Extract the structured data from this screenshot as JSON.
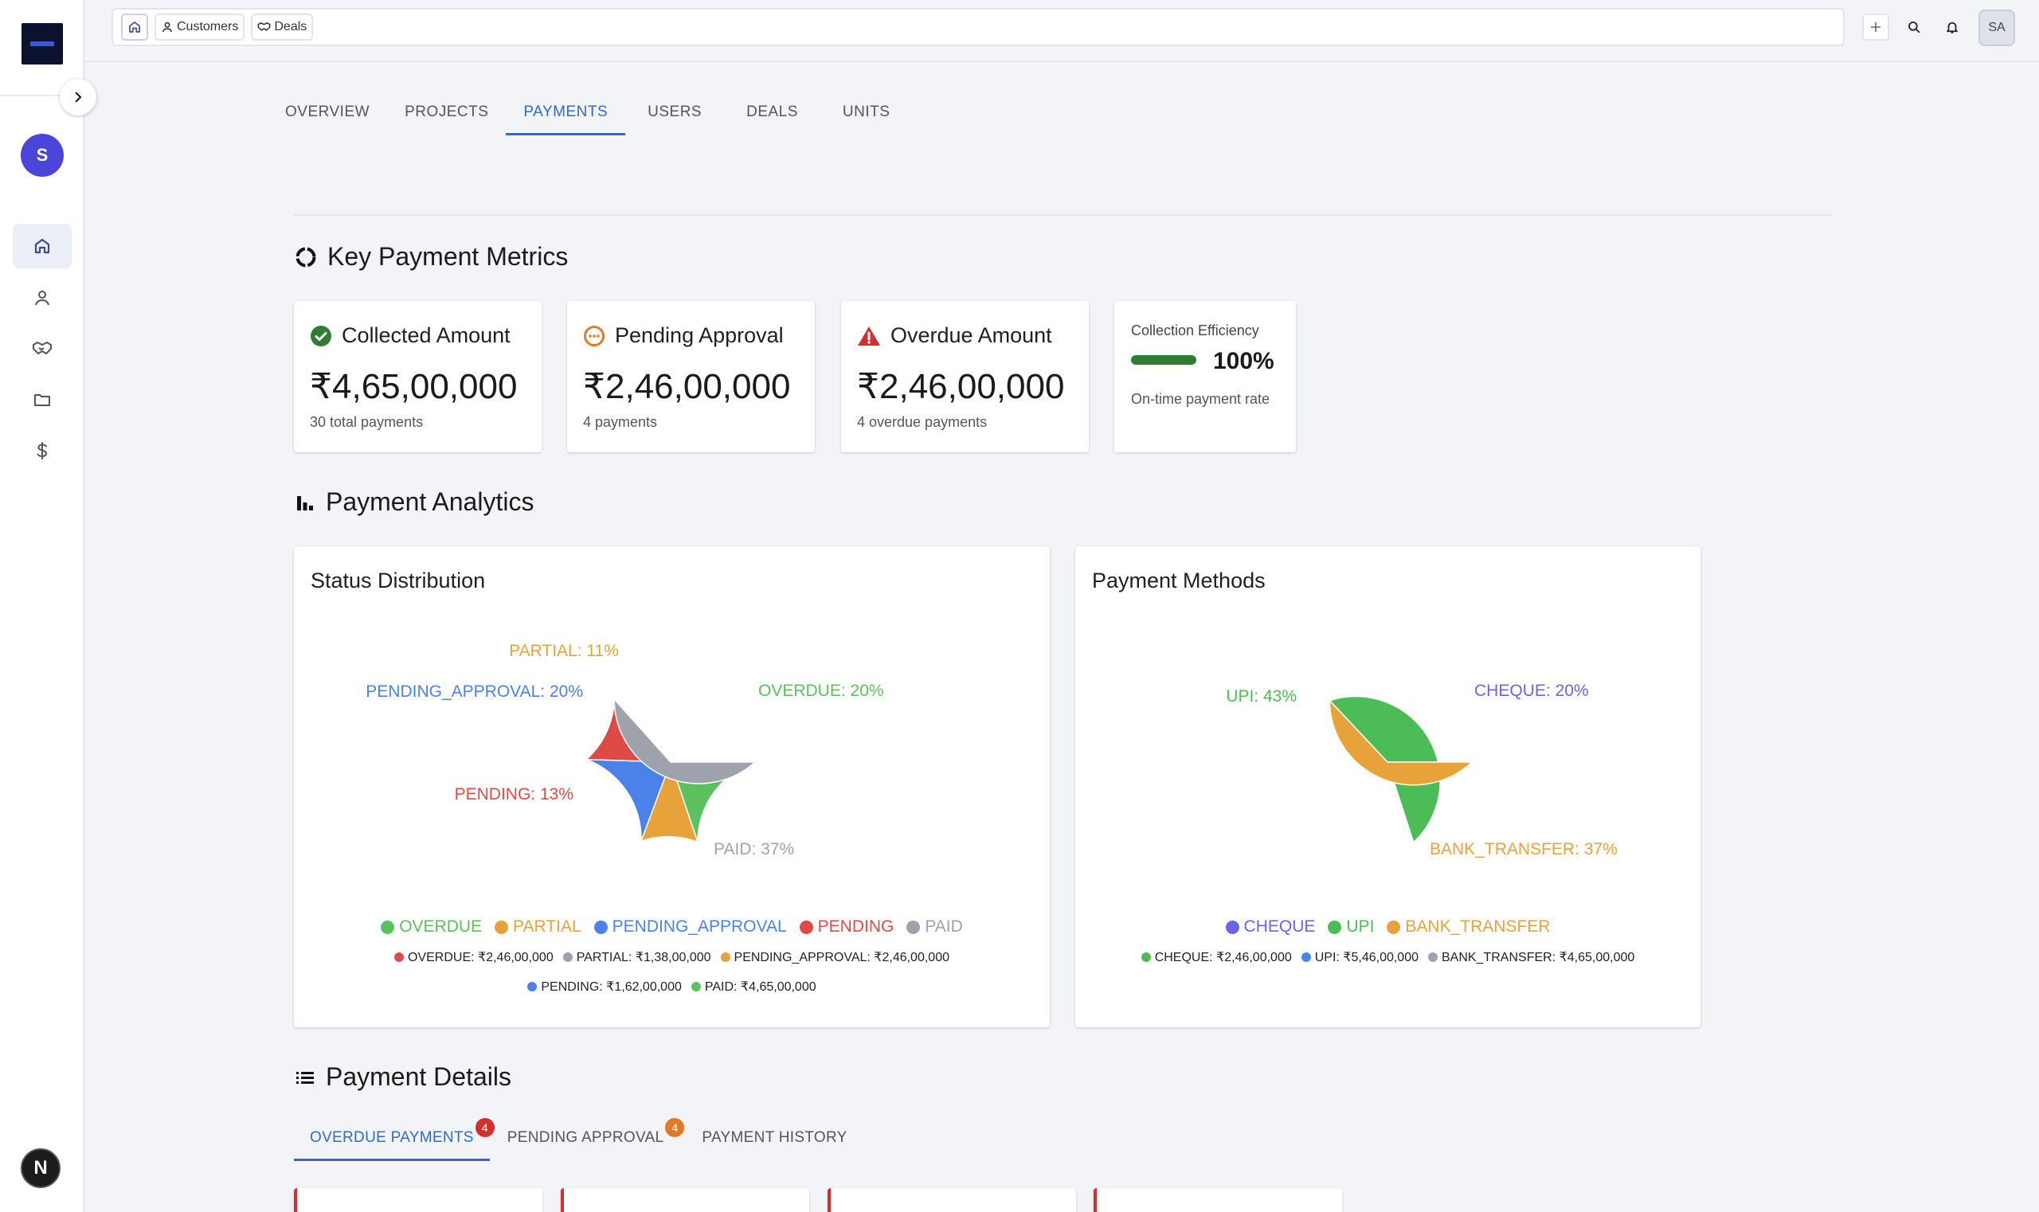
{
  "breadcrumbs": {
    "customers": "Customers",
    "deals": "Deals"
  },
  "user": {
    "sidebar_initial": "S",
    "topbar_initials": "SA",
    "framework_badge": "N"
  },
  "main_tabs": [
    "OVERVIEW",
    "PROJECTS",
    "PAYMENTS",
    "USERS",
    "DEALS",
    "UNITS"
  ],
  "active_main_tab": "PAYMENTS",
  "sections": {
    "metrics": "Key Payment Metrics",
    "analytics": "Payment Analytics",
    "details": "Payment Details"
  },
  "metrics": {
    "collected": {
      "title": "Collected Amount",
      "value": "₹4,65,00,000",
      "sub": "30 total payments"
    },
    "pending": {
      "title": "Pending Approval",
      "value": "₹2,46,00,000",
      "sub": "4 payments"
    },
    "overdue": {
      "title": "Overdue Amount",
      "value": "₹2,46,00,000",
      "sub": "4 overdue payments"
    },
    "efficiency": {
      "title": "Collection Efficiency",
      "value": "100%",
      "level": 1.0,
      "sub": "On-time payment rate"
    }
  },
  "charts": {
    "status": {
      "title": "Status Distribution",
      "labels": [
        "OVERDUE: 20%",
        "PARTIAL: 11%",
        "PENDING_APPROVAL: 20%",
        "PENDING: 13%",
        "PAID: 37%"
      ],
      "legend": [
        "OVERDUE",
        "PARTIAL",
        "PENDING_APPROVAL",
        "PENDING",
        "PAID"
      ],
      "summary_row1": [
        "OVERDUE: ₹2,46,00,000",
        "PARTIAL: ₹1,38,00,000",
        "PENDING_APPROVAL: ₹2,46,00,000"
      ],
      "summary_row2": [
        "PENDING: ₹1,62,00,000",
        "PAID: ₹4,65,00,000"
      ]
    },
    "methods": {
      "title": "Payment Methods",
      "labels": [
        "CHEQUE: 20%",
        "UPI: 43%",
        "BANK_TRANSFER: 37%"
      ],
      "legend": [
        "CHEQUE",
        "UPI",
        "BANK_TRANSFER"
      ],
      "summary_row1": [
        "CHEQUE: ₹2,46,00,000",
        "UPI: ₹5,46,00,000",
        "BANK_TRANSFER: ₹4,65,00,000"
      ]
    }
  },
  "chart_data": [
    {
      "type": "pie",
      "title": "Status Distribution",
      "categories": [
        "OVERDUE",
        "PARTIAL",
        "PENDING_APPROVAL",
        "PENDING",
        "PAID"
      ],
      "values": [
        20,
        11,
        20,
        13,
        37
      ],
      "amounts": [
        "₹2,46,00,000",
        "₹1,38,00,000",
        "₹2,46,00,000",
        "₹1,62,00,000",
        "₹4,65,00,000"
      ],
      "colors": [
        "#5cc05f",
        "#e8a23a",
        "#4a82ea",
        "#de4b44",
        "#9ea2ac"
      ],
      "legend": "bottom"
    },
    {
      "type": "pie",
      "title": "Payment Methods",
      "categories": [
        "CHEQUE",
        "UPI",
        "BANK_TRANSFER"
      ],
      "values": [
        20,
        43,
        37
      ],
      "amounts": [
        "₹2,46,00,000",
        "₹5,46,00,000",
        "₹4,65,00,000"
      ],
      "colors": [
        "#6a64e6",
        "#4cbd56",
        "#e8a23a"
      ],
      "legend": "bottom"
    }
  ],
  "detail_tabs": [
    {
      "label": "OVERDUE PAYMENTS",
      "badge": "4"
    },
    {
      "label": "PENDING APPROVAL",
      "badge": "4"
    },
    {
      "label": "PAYMENT HISTORY",
      "badge": ""
    }
  ],
  "colors": {
    "accent": "#2e6bc9",
    "success": "#2e7d32",
    "warning": "#e07b24",
    "danger": "#d32f2f",
    "sidebar_avatar": "#4b45d9"
  },
  "icons": {
    "collected": "check-circle-icon",
    "pending": "dots-circle-icon",
    "overdue": "warning-triangle-icon",
    "metrics_section": "loader-ring-icon",
    "analytics_section": "bar-chart-icon",
    "details_section": "list-icon"
  }
}
